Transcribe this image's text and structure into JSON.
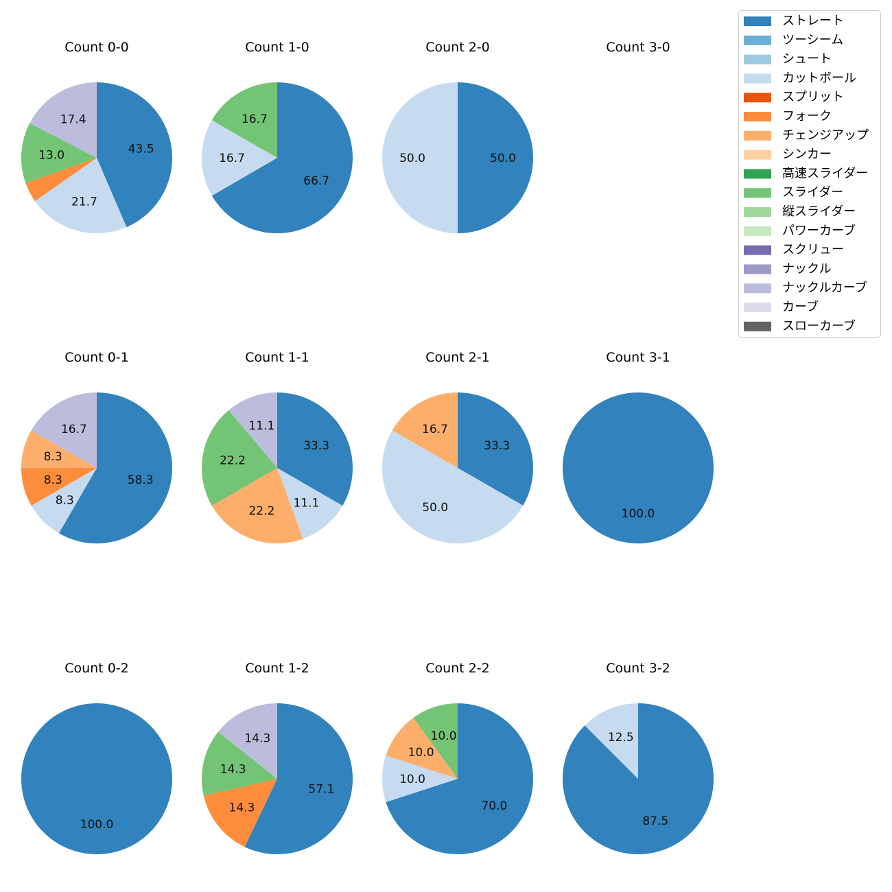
{
  "chart_data": {
    "type": "pie",
    "label_threshold_percent": 5,
    "legend": {
      "placement": "top-right",
      "entries": [
        {
          "name": "ストレート",
          "color": "#3182bd"
        },
        {
          "name": "ツーシーム",
          "color": "#6baed6"
        },
        {
          "name": "シュート",
          "color": "#9ecae1"
        },
        {
          "name": "カットボール",
          "color": "#c6dbef"
        },
        {
          "name": "スプリット",
          "color": "#e6550d"
        },
        {
          "name": "フォーク",
          "color": "#fd8d3c"
        },
        {
          "name": "チェンジアップ",
          "color": "#fdae6b"
        },
        {
          "name": "シンカー",
          "color": "#fdd0a2"
        },
        {
          "name": "高速スライダー",
          "color": "#31a354"
        },
        {
          "name": "スライダー",
          "color": "#74c476"
        },
        {
          "name": "縦スライダー",
          "color": "#a1d99b"
        },
        {
          "name": "パワーカーブ",
          "color": "#c7e9c0"
        },
        {
          "name": "スクリュー",
          "color": "#756bb1"
        },
        {
          "name": "ナックル",
          "color": "#9e9ac8"
        },
        {
          "name": "ナックルカーブ",
          "color": "#bcbddc"
        },
        {
          "name": "カーブ",
          "color": "#dadaeb"
        },
        {
          "name": "スローカーブ",
          "color": "#636363"
        }
      ]
    },
    "pies": [
      {
        "title": "Count 0-0",
        "slices": [
          {
            "name": "ストレート",
            "value": 43.5
          },
          {
            "name": "カットボール",
            "value": 21.7
          },
          {
            "name": "フォーク",
            "value": 4.3
          },
          {
            "name": "スライダー",
            "value": 13.0
          },
          {
            "name": "ナックルカーブ",
            "value": 17.4
          }
        ]
      },
      {
        "title": "Count 1-0",
        "slices": [
          {
            "name": "ストレート",
            "value": 66.7
          },
          {
            "name": "カットボール",
            "value": 16.7
          },
          {
            "name": "スライダー",
            "value": 16.7
          }
        ]
      },
      {
        "title": "Count 2-0",
        "slices": [
          {
            "name": "ストレート",
            "value": 50.0
          },
          {
            "name": "カットボール",
            "value": 50.0
          }
        ]
      },
      {
        "title": "Count 3-0",
        "slices": []
      },
      {
        "title": "Count 0-1",
        "slices": [
          {
            "name": "ストレート",
            "value": 58.3
          },
          {
            "name": "カットボール",
            "value": 8.3
          },
          {
            "name": "フォーク",
            "value": 8.3
          },
          {
            "name": "チェンジアップ",
            "value": 8.3
          },
          {
            "name": "ナックルカーブ",
            "value": 16.7
          }
        ]
      },
      {
        "title": "Count 1-1",
        "slices": [
          {
            "name": "ストレート",
            "value": 33.3
          },
          {
            "name": "カットボール",
            "value": 11.1
          },
          {
            "name": "チェンジアップ",
            "value": 22.2
          },
          {
            "name": "スライダー",
            "value": 22.2
          },
          {
            "name": "ナックルカーブ",
            "value": 11.1
          }
        ]
      },
      {
        "title": "Count 2-1",
        "slices": [
          {
            "name": "ストレート",
            "value": 33.3
          },
          {
            "name": "カットボール",
            "value": 50.0
          },
          {
            "name": "チェンジアップ",
            "value": 16.7
          }
        ]
      },
      {
        "title": "Count 3-1",
        "slices": [
          {
            "name": "ストレート",
            "value": 100.0
          }
        ]
      },
      {
        "title": "Count 0-2",
        "slices": [
          {
            "name": "ストレート",
            "value": 100.0
          }
        ]
      },
      {
        "title": "Count 1-2",
        "slices": [
          {
            "name": "ストレート",
            "value": 57.1
          },
          {
            "name": "フォーク",
            "value": 14.3
          },
          {
            "name": "スライダー",
            "value": 14.3
          },
          {
            "name": "ナックルカーブ",
            "value": 14.3
          }
        ]
      },
      {
        "title": "Count 2-2",
        "slices": [
          {
            "name": "ストレート",
            "value": 70.0
          },
          {
            "name": "カットボール",
            "value": 10.0
          },
          {
            "name": "チェンジアップ",
            "value": 10.0
          },
          {
            "name": "スライダー",
            "value": 10.0
          }
        ]
      },
      {
        "title": "Count 3-2",
        "slices": [
          {
            "name": "ストレート",
            "value": 87.5
          },
          {
            "name": "カットボール",
            "value": 12.5
          }
        ]
      }
    ]
  }
}
